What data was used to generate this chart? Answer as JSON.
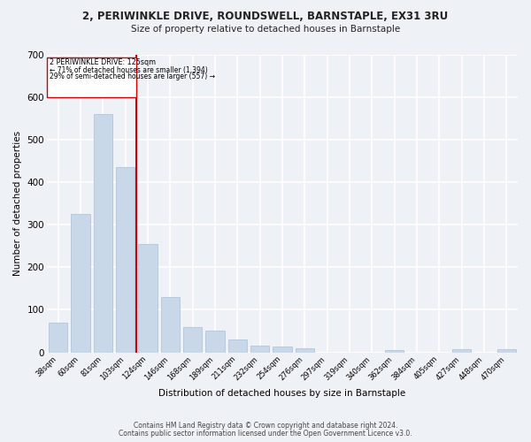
{
  "title1": "2, PERIWINKLE DRIVE, ROUNDSWELL, BARNSTAPLE, EX31 3RU",
  "title2": "Size of property relative to detached houses in Barnstaple",
  "xlabel": "Distribution of detached houses by size in Barnstaple",
  "ylabel": "Number of detached properties",
  "categories": [
    "38sqm",
    "60sqm",
    "81sqm",
    "103sqm",
    "124sqm",
    "146sqm",
    "168sqm",
    "189sqm",
    "211sqm",
    "232sqm",
    "254sqm",
    "276sqm",
    "297sqm",
    "319sqm",
    "340sqm",
    "362sqm",
    "384sqm",
    "405sqm",
    "427sqm",
    "448sqm",
    "470sqm"
  ],
  "values": [
    70,
    325,
    560,
    435,
    255,
    130,
    60,
    50,
    30,
    15,
    13,
    10,
    0,
    0,
    0,
    5,
    0,
    0,
    8,
    0,
    7
  ],
  "bar_color": "#c8d8e8",
  "bar_edgecolor": "#a8c0d8",
  "vline_color": "#cc0000",
  "vline_index": 4,
  "annotation_title": "2 PERIWINKLE DRIVE: 125sqm",
  "annotation_line1": "← 71% of detached houses are smaller (1,394)",
  "annotation_line2": "29% of semi-detached houses are larger (557) →",
  "annotation_box_edgecolor": "#cc0000",
  "ylim": [
    0,
    700
  ],
  "yticks": [
    0,
    100,
    200,
    300,
    400,
    500,
    600,
    700
  ],
  "background_color": "#eef2f7",
  "grid_color": "#ffffff",
  "footer1": "Contains HM Land Registry data © Crown copyright and database right 2024.",
  "footer2": "Contains public sector information licensed under the Open Government Licence v3.0."
}
